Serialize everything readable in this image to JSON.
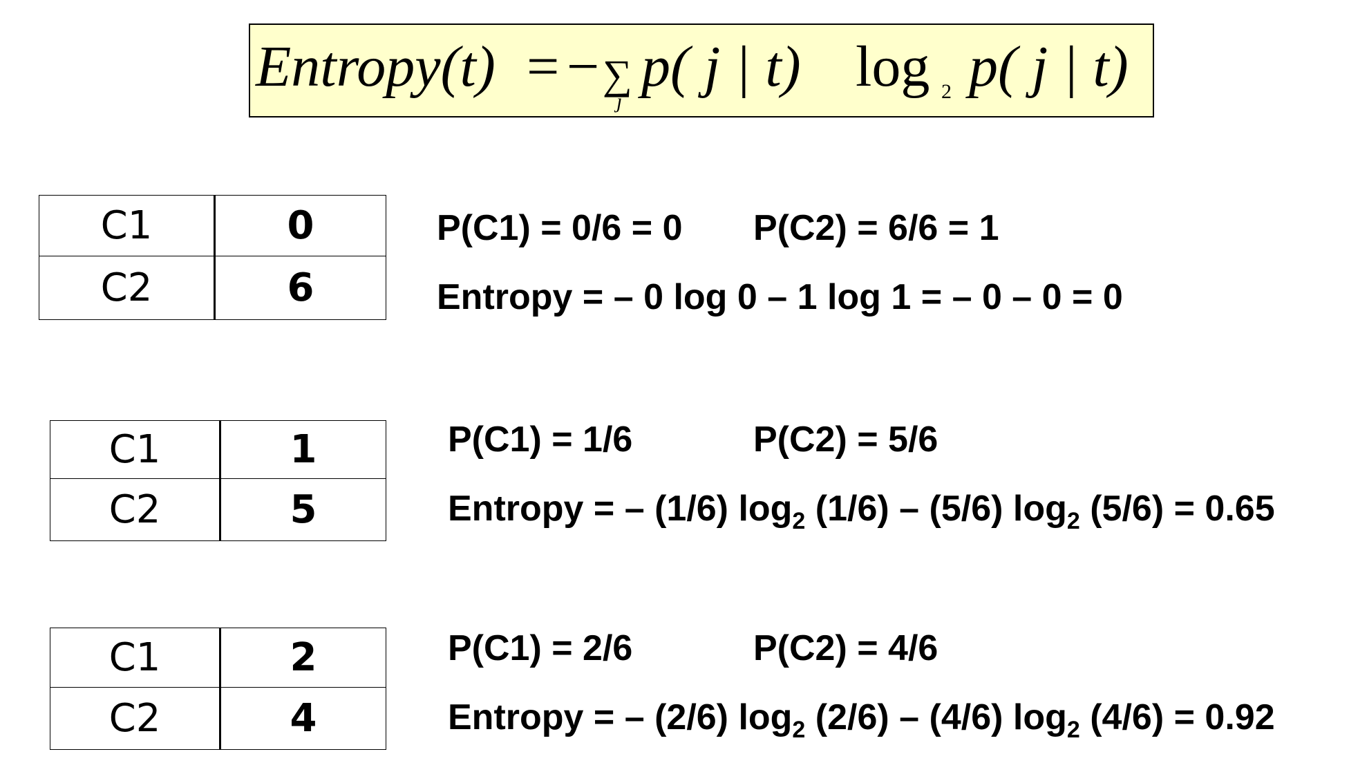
{
  "formula": {
    "lhs": "Entropy(t)",
    "equals": "=",
    "minus": "−",
    "sigma": "∑",
    "sum_index": "j",
    "p1": "p( j | t)",
    "log": "log",
    "log_base": "2",
    "p2": "p( j | t)"
  },
  "examples": [
    {
      "table": {
        "rows": [
          {
            "class": "C1",
            "count": "0"
          },
          {
            "class": "C2",
            "count": "6"
          }
        ]
      },
      "prob_c1": "P(C1) = 0/6 = 0",
      "prob_c2": "P(C2) = 6/6 = 1",
      "entropy": "Entropy = – 0 log 0 – 1 log 1 = – 0 – 0 = 0"
    },
    {
      "table": {
        "rows": [
          {
            "class": "C1",
            "count": "1"
          },
          {
            "class": "C2",
            "count": "5"
          }
        ]
      },
      "prob_c1": "P(C1) = 1/6",
      "prob_c2": "P(C2) = 5/6",
      "entropy_parts": {
        "a": "Entropy = – (1/6) log",
        "sub1": "2",
        "b": " (1/6) – (5/6) log",
        "sub2": "2",
        "c": " (5/6) = 0.65"
      }
    },
    {
      "table": {
        "rows": [
          {
            "class": "C1",
            "count": "2"
          },
          {
            "class": "C2",
            "count": "4"
          }
        ]
      },
      "prob_c1": "P(C1) = 2/6",
      "prob_c2": "P(C2) = 4/6",
      "entropy_parts": {
        "a": "Entropy = – (2/6) log",
        "sub1": "2",
        "b": " (2/6) – (4/6) log",
        "sub2": "2",
        "c": " (4/6) = 0.92"
      }
    }
  ]
}
